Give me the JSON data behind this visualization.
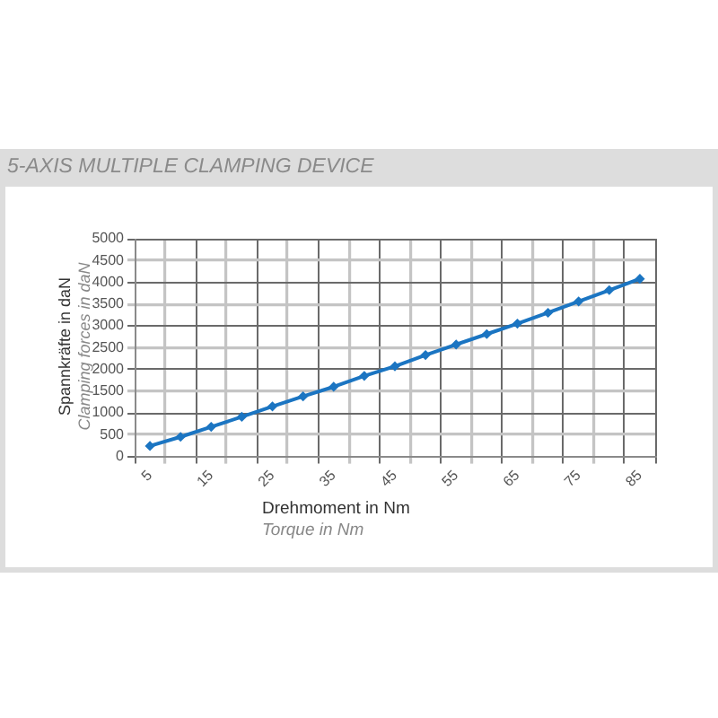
{
  "chart_data": {
    "type": "line",
    "title": "5-AXIS MULTIPLE CLAMPING DEVICE",
    "xlabel": "Drehmoment in Nm\nTorque in Nm",
    "ylabel": "Spannkräfte in daN\nClamping forces in daN",
    "categories": [
      "5",
      null,
      "15",
      null,
      "25",
      null,
      "35",
      null,
      "45",
      null,
      "55",
      null,
      "65",
      null,
      "75",
      null,
      "85"
    ],
    "values": [
      240,
      450,
      680,
      910,
      1150,
      1380,
      1600,
      1850,
      2070,
      2330,
      2570,
      2810,
      3050,
      3300,
      3560,
      3820,
      4080
    ],
    "color": "#1b75c2",
    "ylim": [
      0,
      5000
    ],
    "yticks": [
      0,
      500,
      1000,
      1500,
      2000,
      2500,
      3000,
      3500,
      4000,
      4500,
      5000
    ],
    "grid": true,
    "marker": "diamond",
    "line_style": "solid"
  }
}
